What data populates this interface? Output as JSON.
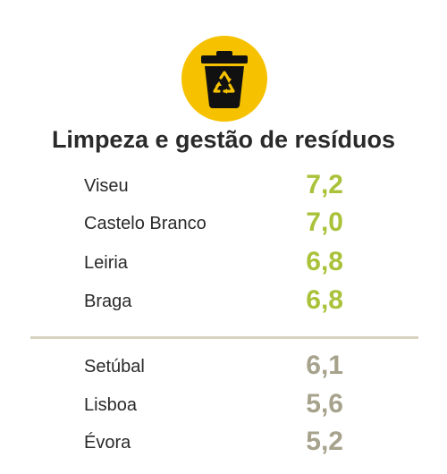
{
  "colors": {
    "icon_circle": "#f6c200",
    "icon_glyph": "#111111",
    "top_score": "#a9c23a",
    "bottom_score": "#a6a28c",
    "divider": "#d7d3bf",
    "text": "#2a2a2a"
  },
  "icon": {
    "name": "recycle-bin-icon"
  },
  "title": "Limpeza e gestão de resíduos",
  "top_group": [
    {
      "city": "Viseu",
      "score": "7,2"
    },
    {
      "city": "Castelo Branco",
      "score": "7,0"
    },
    {
      "city": "Leiria",
      "score": "6,8"
    },
    {
      "city": "Braga",
      "score": "6,8"
    }
  ],
  "bottom_group": [
    {
      "city": "Setúbal",
      "score": "6,1"
    },
    {
      "city": "Lisboa",
      "score": "5,6"
    },
    {
      "city": "Évora",
      "score": "5,2"
    }
  ]
}
